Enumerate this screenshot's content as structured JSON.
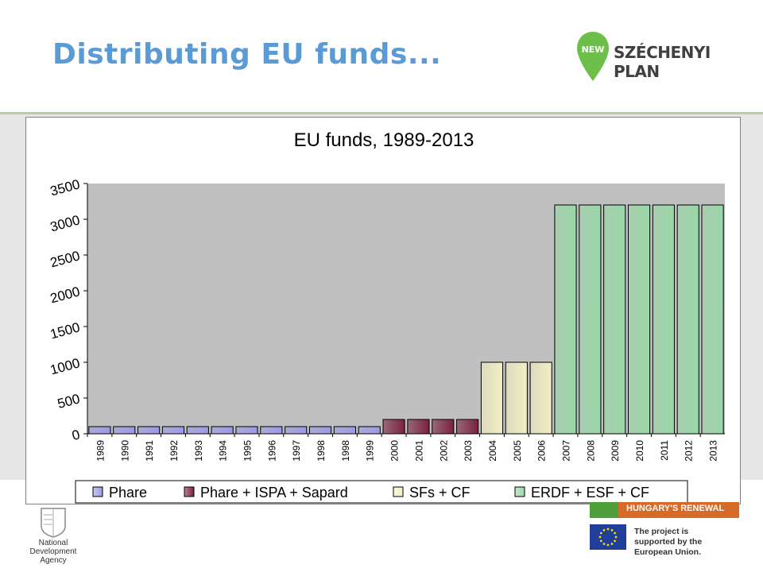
{
  "slide": {
    "title": "Distributing EU funds...",
    "brand_new": "NEW",
    "brand_text": "SZÉCHENYI PLAN",
    "nda_label": "National Development Agency",
    "renewal_text": "HUNGARY'S RENEWAL",
    "eu_support_text": "The project is supported by the European Union."
  },
  "colors": {
    "title": "#5b9bd5",
    "plot_bg": "#c0c0c0",
    "phare": "#9a9ae6",
    "phare_ispa_sapard": "#7a2040",
    "sfs_cf": "#f3efc2",
    "erdf_esf_cf": "#98d8a6"
  },
  "chart_data": {
    "type": "bar",
    "title": "EU funds, 1989-2013",
    "xlabel": "",
    "ylabel": "",
    "ylim": [
      0,
      3500
    ],
    "yticks": [
      0,
      500,
      1000,
      1500,
      2000,
      2500,
      3000,
      3500
    ],
    "grid": false,
    "legend_position": "bottom",
    "categories": [
      "1989",
      "1990",
      "1991",
      "1992",
      "1993",
      "1994",
      "1995",
      "1996",
      "1997",
      "1998",
      "1998",
      "1999",
      "2000",
      "2001",
      "2002",
      "2003",
      "2004",
      "2005",
      "2006",
      "2007",
      "2008",
      "2009",
      "2010",
      "2011",
      "2012",
      "2013"
    ],
    "values": [
      100,
      100,
      100,
      100,
      100,
      100,
      100,
      100,
      100,
      100,
      100,
      100,
      200,
      200,
      200,
      200,
      1000,
      1000,
      1000,
      3200,
      3200,
      3200,
      3200,
      3200,
      3200,
      3200
    ],
    "series_index": [
      0,
      0,
      0,
      0,
      0,
      0,
      0,
      0,
      0,
      0,
      0,
      0,
      1,
      1,
      1,
      1,
      2,
      2,
      2,
      3,
      3,
      3,
      3,
      3,
      3,
      3
    ],
    "legend": [
      {
        "name": "Phare",
        "color": "#9a9ae6"
      },
      {
        "name": "Phare + ISPA + Sapard",
        "color": "#7a2040"
      },
      {
        "name": "SFs + CF",
        "color": "#f3efc2"
      },
      {
        "name": "ERDF + ESF + CF",
        "color": "#98d8a6"
      }
    ]
  }
}
